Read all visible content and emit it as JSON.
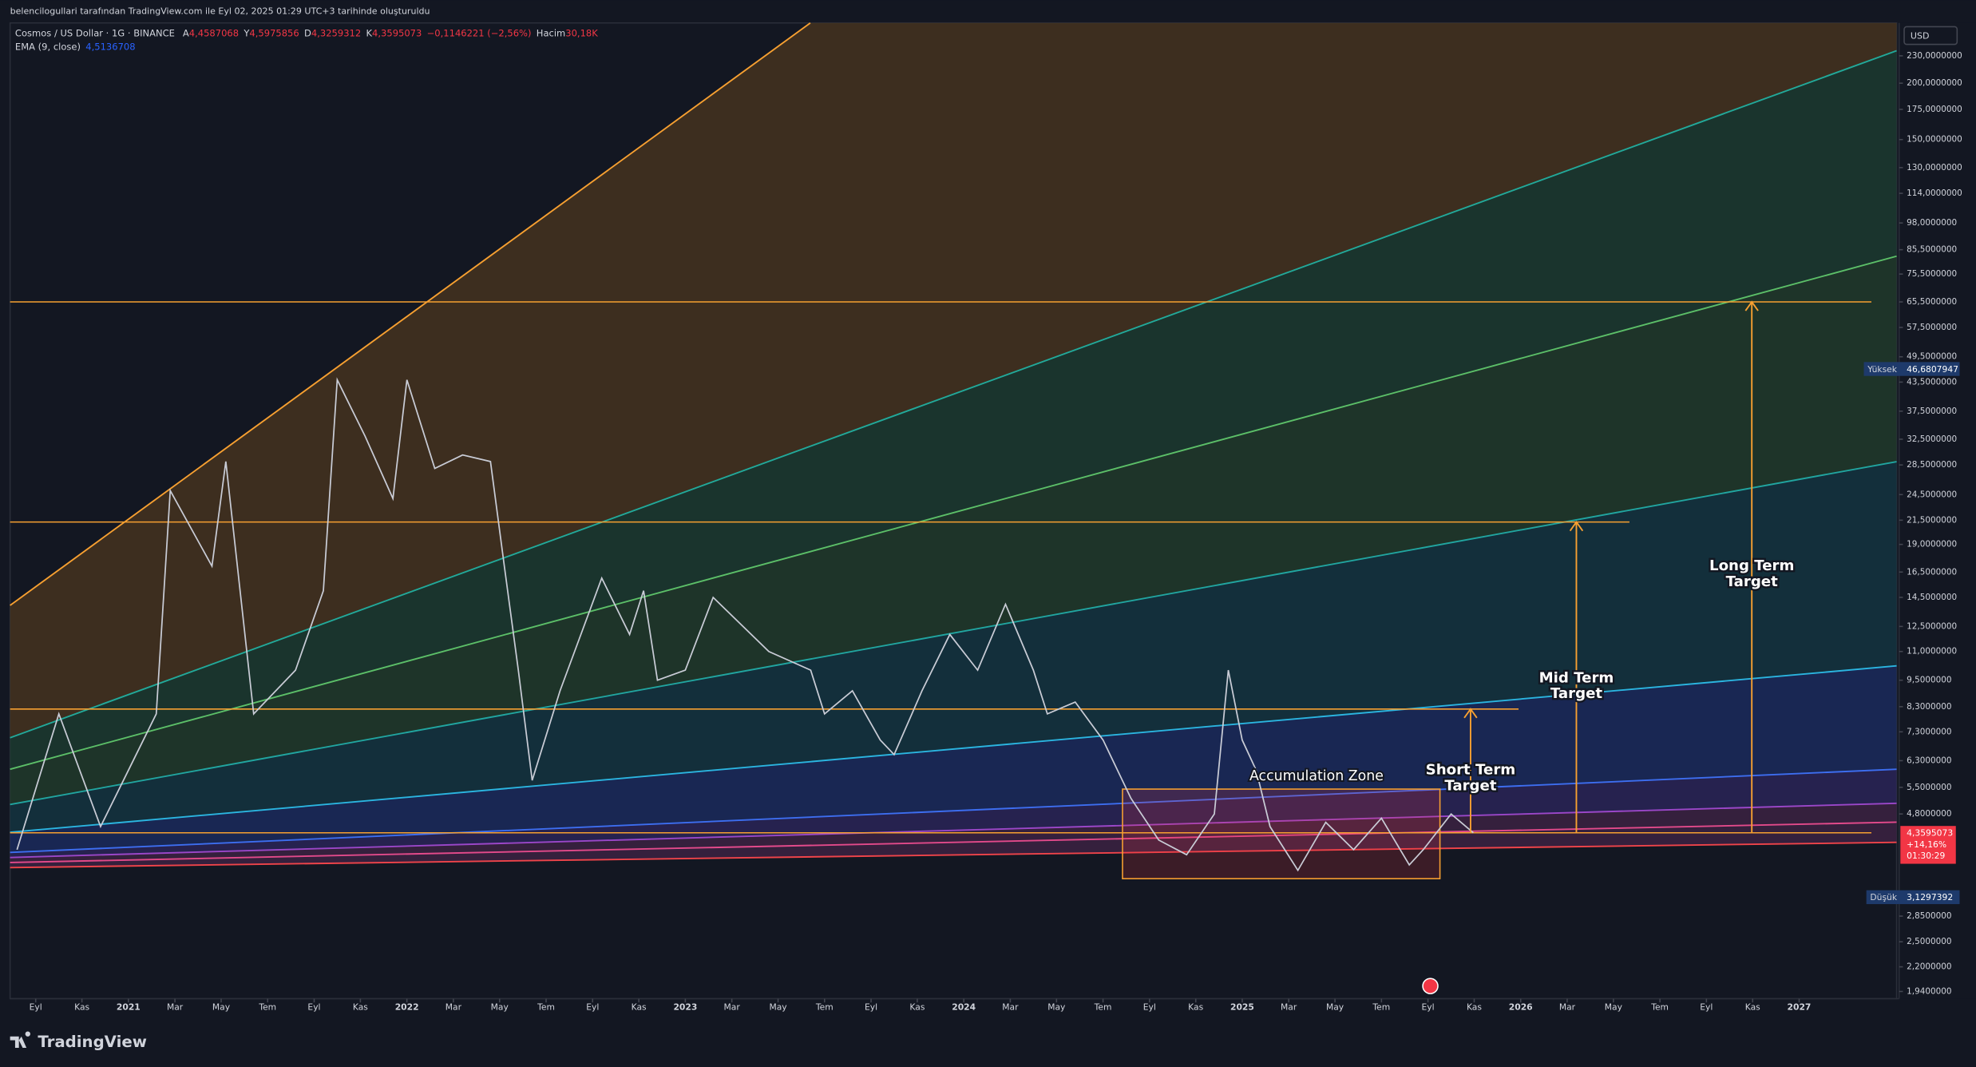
{
  "header": {
    "credit": "belencilogullari tarafından TradingView.com ile Eyl 02, 2025 01:29 UTC+3 tarihinde oluşturuldu",
    "symbol": "Cosmos / US Dollar · 1G · BINANCE",
    "ohlc": [
      {
        "key": "A",
        "value": "4,4587068"
      },
      {
        "key": "Y",
        "value": "4,5975856"
      },
      {
        "key": "D",
        "value": "4,3259312"
      },
      {
        "key": "K",
        "value": "4,3595073"
      }
    ],
    "change": "−0,1146221 (−2,56%)",
    "volume_key": "Hacim",
    "volume": "30,18K",
    "ema": "EMA (9, close)",
    "ema_value": "4,5136708"
  },
  "currency": "USD",
  "badges": {
    "high_label": "Yüksek",
    "high": "46,6807947",
    "low_label": "Düşük",
    "low": "3,1297392",
    "last": "4,3595073",
    "last_change": "+14,16%",
    "countdown": "01:30:29"
  },
  "logo": "TradingView",
  "chart_data": {
    "type": "line",
    "log_scale": true,
    "color": "#c9ccd6",
    "x": [
      2020.6,
      2020.75,
      2020.9,
      2021.0,
      2021.1,
      2021.15,
      2021.3,
      2021.35,
      2021.45,
      2021.6,
      2021.7,
      2021.75,
      2021.85,
      2021.95,
      2022.0,
      2022.1,
      2022.2,
      2022.3,
      2022.35,
      2022.4,
      2022.45,
      2022.55,
      2022.7,
      2022.8,
      2022.85,
      2022.9,
      2023.0,
      2023.1,
      2023.3,
      2023.45,
      2023.5,
      2023.6,
      2023.7,
      2023.75,
      2023.85,
      2023.95,
      2024.05,
      2024.15,
      2024.25,
      2024.3,
      2024.4,
      2024.5,
      2024.6,
      2024.7,
      2024.8,
      2024.9,
      2024.95,
      2025.0,
      2025.05,
      2025.1,
      2025.2,
      2025.3,
      2025.4,
      2025.5,
      2025.6,
      2025.65,
      2025.75,
      2025.83
    ],
    "values": [
      4,
      8,
      4.5,
      6,
      8,
      25,
      17,
      29,
      8,
      10,
      15,
      44,
      33,
      24,
      44,
      28,
      30,
      29,
      17,
      10,
      5.7,
      9,
      16,
      12,
      15,
      9.5,
      10,
      14.5,
      11,
      10,
      8,
      9,
      7,
      6.5,
      9,
      12,
      10,
      14,
      10,
      8,
      8.5,
      7,
      5.2,
      4.2,
      3.9,
      4.8,
      10,
      7,
      6,
      4.5,
      3.6,
      4.6,
      4,
      4.7,
      3.7,
      4,
      4.8,
      4.36
    ],
    "xlim": [
      2020.575,
      2027.35
    ],
    "ylim": [
      1.87,
      272
    ],
    "xticks": [
      {
        "value": 2020.667,
        "label": "Eyl"
      },
      {
        "value": 2020.833,
        "label": "Kas"
      },
      2021,
      {
        "value": 2021.167,
        "label": "Mar"
      },
      {
        "value": 2021.333,
        "label": "May"
      },
      {
        "value": 2021.5,
        "label": "Tem"
      },
      {
        "value": 2021.667,
        "label": "Eyl"
      },
      {
        "value": 2021.833,
        "label": "Kas"
      },
      2022,
      {
        "value": 2022.167,
        "label": "Mar"
      },
      {
        "value": 2022.333,
        "label": "May"
      },
      {
        "value": 2022.5,
        "label": "Tem"
      },
      {
        "value": 2022.667,
        "label": "Eyl"
      },
      {
        "value": 2022.833,
        "label": "Kas"
      },
      2023,
      {
        "value": 2023.167,
        "label": "Mar"
      },
      {
        "value": 2023.333,
        "label": "May"
      },
      {
        "value": 2023.5,
        "label": "Tem"
      },
      {
        "value": 2023.667,
        "label": "Eyl"
      },
      {
        "value": 2023.833,
        "label": "Kas"
      },
      2024,
      {
        "value": 2024.167,
        "label": "Mar"
      },
      {
        "value": 2024.333,
        "label": "May"
      },
      {
        "value": 2024.5,
        "label": "Tem"
      },
      {
        "value": 2024.667,
        "label": "Eyl"
      },
      {
        "value": 2024.833,
        "label": "Kas"
      },
      2025,
      {
        "value": 2025.167,
        "label": "Mar"
      },
      {
        "value": 2025.333,
        "label": "May"
      },
      {
        "value": 2025.5,
        "label": "Tem"
      },
      {
        "value": 2025.667,
        "label": "Eyl"
      },
      {
        "value": 2025.833,
        "label": "Kas"
      },
      2026,
      {
        "value": 2026.167,
        "label": "Mar"
      },
      {
        "value": 2026.333,
        "label": "May"
      },
      {
        "value": 2026.5,
        "label": "Tem"
      },
      {
        "value": 2026.667,
        "label": "Eyl"
      },
      {
        "value": 2026.833,
        "label": "Kas"
      },
      2027
    ],
    "yticks": [
      {
        "value": 230,
        "label": "230,0000000"
      },
      {
        "value": 200,
        "label": "200,0000000"
      },
      {
        "value": 175,
        "label": "175,0000000"
      },
      {
        "value": 150,
        "label": "150,0000000"
      },
      {
        "value": 130,
        "label": "130,0000000"
      },
      {
        "value": 114,
        "label": "114,0000000"
      },
      {
        "value": 98,
        "label": "98,0000000"
      },
      {
        "value": 85.5,
        "label": "85,5000000"
      },
      {
        "value": 75.5,
        "label": "75,5000000"
      },
      {
        "value": 65.5,
        "label": "65,5000000"
      },
      {
        "value": 57.5,
        "label": "57,5000000"
      },
      {
        "value": 49.5,
        "label": "49,5000000"
      },
      {
        "value": 43.5,
        "label": "43,5000000"
      },
      {
        "value": 37.5,
        "label": "37,5000000"
      },
      {
        "value": 32.5,
        "label": "32,5000000"
      },
      {
        "value": 28.5,
        "label": "28,5000000"
      },
      {
        "value": 24.5,
        "label": "24,5000000"
      },
      {
        "value": 21.5,
        "label": "21,5000000"
      },
      {
        "value": 19,
        "label": "19,0000000"
      },
      {
        "value": 16.5,
        "label": "16,5000000"
      },
      {
        "value": 14.5,
        "label": "14,5000000"
      },
      {
        "value": 12.5,
        "label": "12,5000000"
      },
      {
        "value": 11,
        "label": "11,0000000"
      },
      {
        "value": 9.5,
        "label": "9,5000000"
      },
      {
        "value": 8.3,
        "label": "8,3000000"
      },
      {
        "value": 7.3,
        "label": "7,3000000"
      },
      {
        "value": 6.3,
        "label": "6,3000000"
      },
      {
        "value": 5.5,
        "label": "5,5000000"
      },
      {
        "value": 4.8,
        "label": "4,8000000"
      },
      {
        "value": 2.85,
        "label": "2,8500000"
      },
      {
        "value": 2.5,
        "label": "2,5000000"
      },
      {
        "value": 2.2,
        "label": "2,2000000"
      },
      {
        "value": 1.94,
        "label": "1,9400000"
      }
    ],
    "levels": [
      65.5,
      21.3,
      8.2,
      4.36
    ],
    "zone": {
      "label": "Accumulation Zone",
      "ylim": [
        3.45,
        5.45
      ],
      "xlim": [
        2024.57,
        2025.71
      ]
    },
    "targets": [
      {
        "label": [
          "Short Term",
          "Target"
        ],
        "value": 8.2,
        "x": 2025.82
      },
      {
        "label": [
          "Mid Term",
          "Target"
        ],
        "value": 21.3,
        "x": 2026.2
      },
      {
        "label": [
          "Long Term",
          "Target"
        ],
        "value": 65.5,
        "x": 2026.83
      }
    ]
  }
}
